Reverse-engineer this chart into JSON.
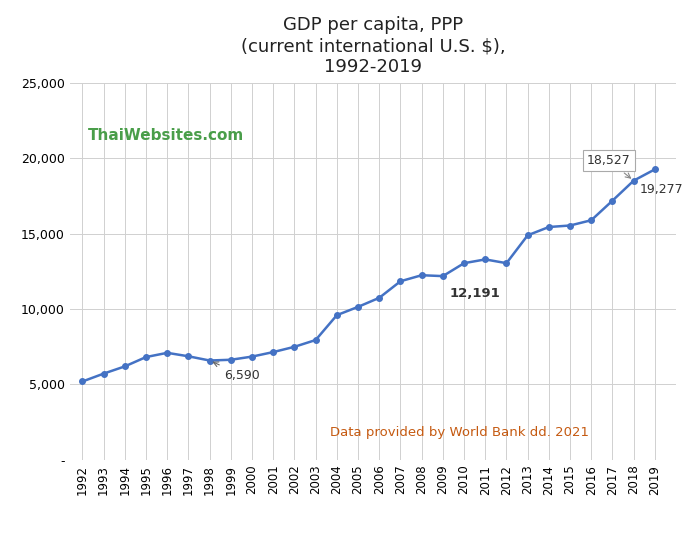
{
  "title": "GDP per capita, PPP\n(current international U.S. $),\n1992-2019",
  "title_fontsize": 13,
  "years": [
    1992,
    1993,
    1994,
    1995,
    1996,
    1997,
    1998,
    1999,
    2000,
    2001,
    2002,
    2003,
    2004,
    2005,
    2006,
    2007,
    2008,
    2009,
    2010,
    2011,
    2012,
    2013,
    2014,
    2015,
    2016,
    2017,
    2018,
    2019
  ],
  "values": [
    5198,
    5720,
    6200,
    6820,
    7100,
    6870,
    6590,
    6640,
    6850,
    7150,
    7500,
    7950,
    9600,
    10150,
    10750,
    11850,
    12250,
    12191,
    13050,
    13300,
    13050,
    14900,
    15450,
    15550,
    15900,
    17200,
    18527,
    19277
  ],
  "line_color": "#4472c4",
  "marker_color": "#4472c4",
  "marker_style": "o",
  "marker_size": 4,
  "line_width": 1.8,
  "ylim": [
    0,
    25000
  ],
  "yticks": [
    0,
    5000,
    10000,
    15000,
    20000,
    25000
  ],
  "background_color": "#ffffff",
  "grid_color": "#d0d0d0",
  "watermark_text": "ThaiWebsites.com",
  "watermark_color": "#4a9e4a",
  "watermark_fontsize": 11,
  "ann_1998_text": "6,590",
  "ann_1998_year": 1998,
  "ann_1998_value": 6590,
  "ann_2009_text": "12,191",
  "ann_2009_year": 2009,
  "ann_2009_value": 12191,
  "ann_2018_text": "18,527",
  "ann_2018_year": 2018,
  "ann_2018_value": 18527,
  "ann_2019_text": "19,277",
  "ann_2019_year": 2019,
  "ann_2019_value": 19277,
  "footnote_text": "Data provided by World Bank dd. 2021",
  "footnote_color": "#c55a11"
}
